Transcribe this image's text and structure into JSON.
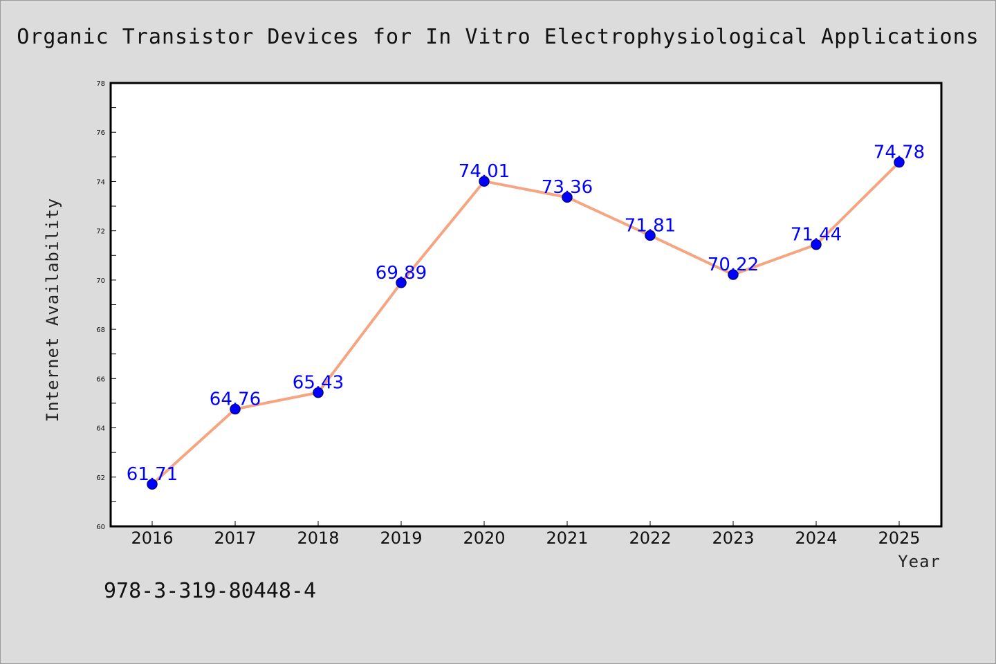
{
  "chart_data": {
    "type": "line",
    "title": "Organic Transistor Devices for In Vitro Electrophysiological Applications",
    "xlabel": "Year",
    "ylabel": "Internet Availability",
    "categories": [
      "2016",
      "2017",
      "2018",
      "2019",
      "2020",
      "2021",
      "2022",
      "2023",
      "2024",
      "2025"
    ],
    "series": [
      {
        "values": [
          61.71,
          64.76,
          65.43,
          69.89,
          74.01,
          73.36,
          71.81,
          70.22,
          71.44,
          74.78
        ],
        "line_color": "#f4a582",
        "marker_color": "#0000ff",
        "label_color": "#0000ff"
      }
    ],
    "data_labels": [
      "61.71",
      "64.76",
      "65.43",
      "69.89",
      "74.01",
      "73.36",
      "71.81",
      "70.22",
      "71.44",
      "74.78"
    ],
    "ylim": [
      60,
      78
    ],
    "yticks": [
      "60",
      "62",
      "64",
      "66",
      "68",
      "70",
      "72",
      "74",
      "76",
      "78"
    ],
    "grid": false,
    "legend": "none"
  },
  "footer": {
    "isbn": "978-3-319-80448-4"
  },
  "colors": {
    "background": "#dcdcdc",
    "plot_background": "#ffffff",
    "line": "#f4a582",
    "marker": "#0000ff",
    "label": "#0000ff"
  }
}
